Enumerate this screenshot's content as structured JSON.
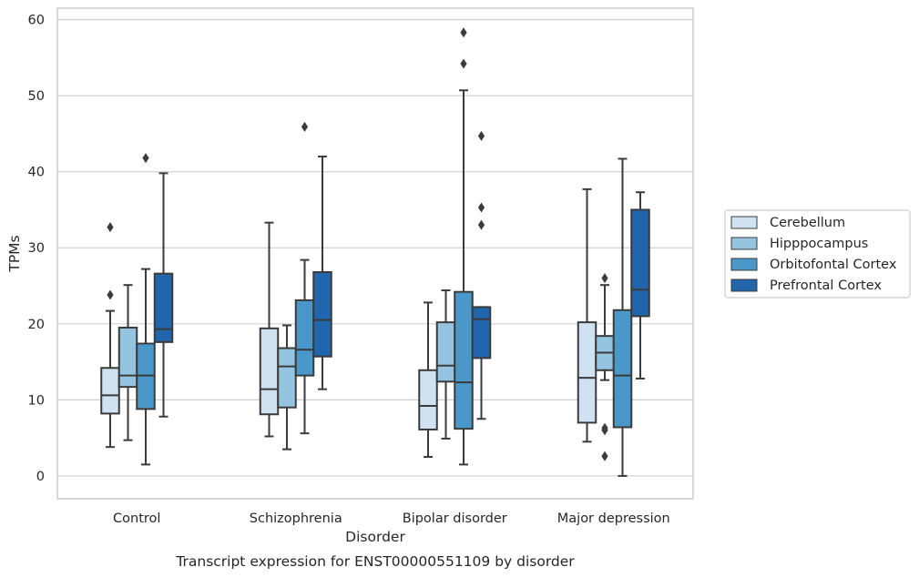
{
  "caption": "Transcript expression for ENST00000551109 by disorder",
  "colors": [
    "#d0e1f2",
    "#94c4df",
    "#4a98c9",
    "#2166ac"
  ],
  "chart_data": {
    "type": "boxplot",
    "xlabel": "Disorder",
    "ylabel": "TPMs",
    "ylim": [
      -3,
      61.5
    ],
    "yticks": [
      0,
      10,
      20,
      30,
      40,
      50,
      60
    ],
    "categories": [
      "Control",
      "Schizophrenia",
      "Bipolar disorder",
      "Major depression"
    ],
    "grid": "y",
    "legend_position": "right",
    "series": [
      {
        "name": "Cerebellum",
        "boxes": [
          {
            "whisker_low": 3.8,
            "q1": 8.2,
            "median": 10.6,
            "q3": 14.2,
            "whisker_high": 21.7,
            "outliers": [
              23.8,
              32.7
            ]
          },
          {
            "whisker_low": 5.2,
            "q1": 8.1,
            "median": 11.4,
            "q3": 19.4,
            "whisker_high": 33.3,
            "outliers": []
          },
          {
            "whisker_low": 2.5,
            "q1": 6.1,
            "median": 9.2,
            "q3": 13.9,
            "whisker_high": 22.8,
            "outliers": []
          },
          {
            "whisker_low": 4.5,
            "q1": 7.0,
            "median": 12.9,
            "q3": 20.2,
            "whisker_high": 37.7,
            "outliers": []
          }
        ]
      },
      {
        "name": "Hipppocampus",
        "boxes": [
          {
            "whisker_low": 4.7,
            "q1": 11.7,
            "median": 13.2,
            "q3": 19.5,
            "whisker_high": 25.1,
            "outliers": []
          },
          {
            "whisker_low": 3.5,
            "q1": 9.0,
            "median": 14.4,
            "q3": 16.8,
            "whisker_high": 19.8,
            "outliers": []
          },
          {
            "whisker_low": 4.9,
            "q1": 12.4,
            "median": 14.5,
            "q3": 20.2,
            "whisker_high": 24.4,
            "outliers": []
          },
          {
            "whisker_low": 12.6,
            "q1": 13.9,
            "median": 16.2,
            "q3": 18.4,
            "whisker_high": 25.1,
            "outliers": [
              26.0,
              2.6,
              6.0,
              6.3
            ]
          }
        ]
      },
      {
        "name": "Orbitofontal Cortex",
        "boxes": [
          {
            "whisker_low": 1.5,
            "q1": 8.8,
            "median": 13.2,
            "q3": 17.4,
            "whisker_high": 27.2,
            "outliers": [
              41.8
            ]
          },
          {
            "whisker_low": 5.6,
            "q1": 13.2,
            "median": 16.6,
            "q3": 23.1,
            "whisker_high": 28.4,
            "outliers": [
              45.9
            ]
          },
          {
            "whisker_low": 1.5,
            "q1": 6.2,
            "median": 12.3,
            "q3": 24.2,
            "whisker_high": 50.7,
            "outliers": [
              54.2,
              58.3
            ]
          },
          {
            "whisker_low": 0.0,
            "q1": 6.4,
            "median": 13.2,
            "q3": 21.8,
            "whisker_high": 41.7,
            "outliers": []
          }
        ]
      },
      {
        "name": "Prefrontal Cortex",
        "boxes": [
          {
            "whisker_low": 7.8,
            "q1": 17.6,
            "median": 19.3,
            "q3": 26.6,
            "whisker_high": 39.8,
            "outliers": []
          },
          {
            "whisker_low": 11.4,
            "q1": 15.7,
            "median": 20.5,
            "q3": 26.8,
            "whisker_high": 42.0,
            "outliers": []
          },
          {
            "whisker_low": 7.5,
            "q1": 15.5,
            "median": 20.6,
            "q3": 22.2,
            "whisker_high": 22.2,
            "outliers": [
              33.0,
              35.3,
              44.7
            ]
          },
          {
            "whisker_low": 12.8,
            "q1": 21.0,
            "median": 24.5,
            "q3": 35.0,
            "whisker_high": 37.3,
            "outliers": []
          }
        ]
      }
    ]
  }
}
